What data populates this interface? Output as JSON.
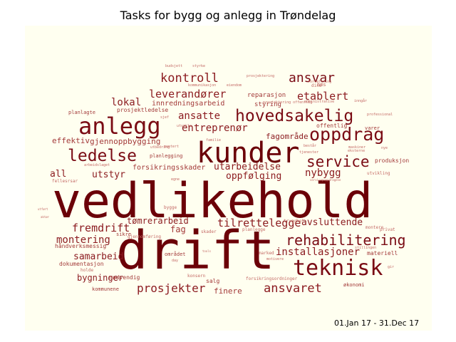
{
  "title": "Tasks for bygg og anlegg in Trøndelag",
  "date_range": "01.Jan 17 - 31.Dec 17",
  "background_color": "#fffff0",
  "words": [
    {
      "text": "vedlikehold",
      "weight": 100
    },
    {
      "text": "drift",
      "weight": 96
    },
    {
      "text": "kunder",
      "weight": 62
    },
    {
      "text": "anlegg",
      "weight": 50
    },
    {
      "text": "teknisk",
      "weight": 44
    },
    {
      "text": "hovedsakelig",
      "weight": 40
    },
    {
      "text": "ledelse",
      "weight": 36
    },
    {
      "text": "oppdrag",
      "weight": 36
    },
    {
      "text": "service",
      "weight": 32
    },
    {
      "text": "rehabilitering",
      "weight": 32
    },
    {
      "text": "ansvar",
      "weight": 30
    },
    {
      "text": "ansvaret",
      "weight": 28
    },
    {
      "text": "kontroll",
      "weight": 27
    },
    {
      "text": "prosjekter",
      "weight": 26
    },
    {
      "text": "fremdrift",
      "weight": 26
    },
    {
      "text": "tilrettelegge",
      "weight": 25
    },
    {
      "text": "leverandører",
      "weight": 24
    },
    {
      "text": "etablert",
      "weight": 23
    },
    {
      "text": "ansatte",
      "weight": 22
    },
    {
      "text": "entreprenør",
      "weight": 21
    },
    {
      "text": "installasjoner",
      "weight": 20
    },
    {
      "text": "montering",
      "weight": 19
    },
    {
      "text": "nybygg",
      "weight": 18
    },
    {
      "text": "lokal",
      "weight": 17
    },
    {
      "text": "samarbeid",
      "weight": 16
    },
    {
      "text": "utstyr",
      "weight": 15
    },
    {
      "text": "avsluttende",
      "weight": 15
    },
    {
      "text": "utarbeidelse",
      "weight": 15
    },
    {
      "text": "oppfølging",
      "weight": 15
    },
    {
      "text": "all",
      "weight": 15
    },
    {
      "text": "bygninger",
      "weight": 14
    },
    {
      "text": "fagområde",
      "weight": 14
    },
    {
      "text": "tømrerarbeid",
      "weight": 14
    },
    {
      "text": "effektiv",
      "weight": 13
    },
    {
      "text": "finere",
      "weight": 13
    },
    {
      "text": "gjennoppbygging",
      "weight": 12
    },
    {
      "text": "fag",
      "weight": 12
    },
    {
      "text": "forsikringsskader",
      "weight": 11
    },
    {
      "text": "innredningsarbeid",
      "weight": 10
    },
    {
      "text": "reparasjon",
      "weight": 9
    },
    {
      "text": "styring",
      "weight": 9
    },
    {
      "text": "prosjektledelse",
      "weight": 8
    },
    {
      "text": "offentlig",
      "weight": 8
    },
    {
      "text": "produksjon",
      "weight": 8
    },
    {
      "text": "nødvendig",
      "weight": 8
    },
    {
      "text": "håndverksmessig",
      "weight": 8
    },
    {
      "text": "dokumentasjon",
      "weight": 8
    },
    {
      "text": "materiell",
      "weight": 8
    },
    {
      "text": "planlagte",
      "weight": 7
    },
    {
      "text": "planlegging",
      "weight": 7
    },
    {
      "text": "varer",
      "weight": 7
    },
    {
      "text": "området",
      "weight": 7
    },
    {
      "text": "kommunene",
      "weight": 7
    },
    {
      "text": "økonomi",
      "weight": 7
    },
    {
      "text": "salg",
      "weight": 7
    },
    {
      "text": "sikre",
      "weight": 7
    },
    {
      "text": "hms",
      "weight": 6
    },
    {
      "text": "dine",
      "weight": 6
    },
    {
      "text": "trygghet",
      "weight": 6
    },
    {
      "text": "fellesrsar",
      "weight": 6
    },
    {
      "text": "utvikling",
      "weight": 6
    },
    {
      "text": "privat",
      "weight": 6
    },
    {
      "text": "aktør",
      "weight": 5
    },
    {
      "text": "bygge",
      "weight": 5
    },
    {
      "text": "gjennomføring",
      "weight": 5
    },
    {
      "text": "planlegge",
      "weight": 5
    },
    {
      "text": "skader",
      "weight": 5
    },
    {
      "text": "marked",
      "weight": 5
    },
    {
      "text": "konsern",
      "weight": 5
    },
    {
      "text": "forsikringsordninger",
      "weight": 5
    },
    {
      "text": "holde",
      "weight": 5
    },
    {
      "text": "montere",
      "weight": 5
    },
    {
      "text": "stillingen",
      "weight": 5
    },
    {
      "text": "motivere",
      "weight": 5
    },
    {
      "text": "gir",
      "weight": 5
    },
    {
      "text": "utvikle",
      "weight": 5
    },
    {
      "text": "utbedring",
      "weight": 5
    },
    {
      "text": "montert",
      "weight": 5
    },
    {
      "text": "familie",
      "weight": 5
    },
    {
      "text": "prosjektering",
      "weight": 5
    },
    {
      "text": "egne",
      "weight": 5
    },
    {
      "text": "sjef",
      "weight": 5
    },
    {
      "text": "eksterne",
      "weight": 5
    },
    {
      "text": "maskiner",
      "weight": 5
    },
    {
      "text": "består",
      "weight": 5
    },
    {
      "text": "tjenester",
      "weight": 5
    },
    {
      "text": "arbeidslaget",
      "weight": 5
    },
    {
      "text": "forvaltning",
      "weight": 5
    },
    {
      "text": "prosjektering offentlig",
      "weight": 4
    },
    {
      "text": "eiendom",
      "weight": 4
    },
    {
      "text": "kommunikasjon",
      "weight": 4
    },
    {
      "text": "budsjett",
      "weight": 4
    },
    {
      "text": "styrke",
      "weight": 4
    },
    {
      "text": "administrative",
      "weight": 4
    },
    {
      "text": "inngår",
      "weight": 4
    },
    {
      "text": "professional",
      "weight": 4
    },
    {
      "text": "nye",
      "weight": 4
    },
    {
      "text": "servicepoppdragene",
      "weight": 4
    },
    {
      "text": "tools",
      "weight": 4
    },
    {
      "text": "day",
      "weight": 4
    },
    {
      "text": "utført",
      "weight": 4
    }
  ]
}
